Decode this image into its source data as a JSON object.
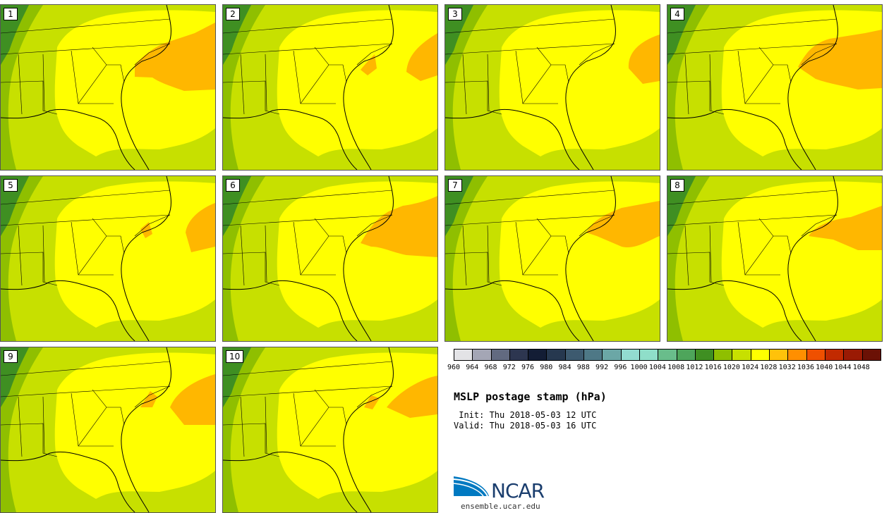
{
  "figure": {
    "title": "MSLP postage stamp (hPa)",
    "init": " Init: Thu 2018-05-03 12 UTC",
    "valid": "Valid: Thu 2018-05-03 16 UTC"
  },
  "members": [
    "1",
    "2",
    "3",
    "4",
    "5",
    "6",
    "7",
    "8",
    "9",
    "10"
  ],
  "colorbar": {
    "ticks": [
      "960",
      "964",
      "968",
      "972",
      "976",
      "980",
      "984",
      "988",
      "992",
      "996",
      "1000",
      "1004",
      "1008",
      "1012",
      "1016",
      "1020",
      "1024",
      "1028",
      "1032",
      "1036",
      "1040",
      "1044",
      "1048"
    ],
    "colors": [
      "#e3e3e6",
      "#a4a6b5",
      "#626a80",
      "#2d3650",
      "#131d35",
      "#26384f",
      "#3d5a6f",
      "#4e7886",
      "#6ba7a6",
      "#92dcd0",
      "#8fdec9",
      "#69bd8b",
      "#4ea55b",
      "#3f8f22",
      "#8fbf00",
      "#c7e000",
      "#ffff00",
      "#ffc20a",
      "#ff8f00",
      "#ef5000",
      "#c22a00",
      "#9a1a04",
      "#6b1105"
    ]
  },
  "logo": {
    "name": "NCAR",
    "url": "ensemble.ucar.edu"
  }
}
